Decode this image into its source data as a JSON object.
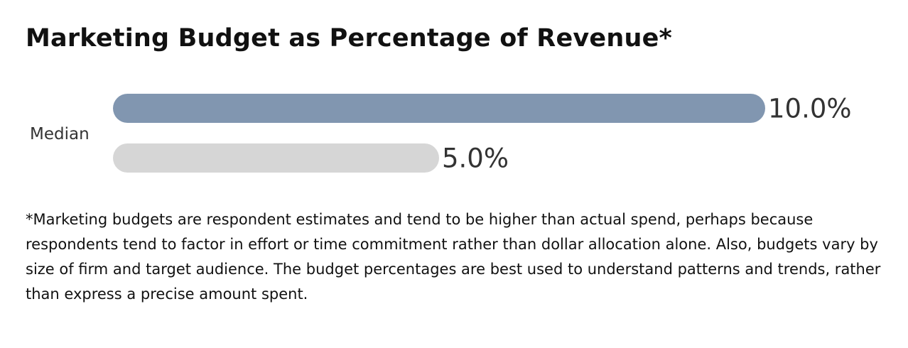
{
  "chart_data": {
    "type": "bar",
    "orientation": "horizontal",
    "title": "Marketing Budget as Percentage of Revenue*",
    "categories": [
      "Median"
    ],
    "series": [
      {
        "values": [
          10.0
        ],
        "labels": [
          "10.0%"
        ],
        "color": "#8196B0"
      },
      {
        "values": [
          5.0
        ],
        "labels": [
          "5.0%"
        ],
        "color": "#D6D6D6"
      }
    ],
    "xlim": [
      0,
      10.0
    ],
    "legend": "none",
    "grid": false
  },
  "footnote": "*Marketing budgets are respondent estimates and tend to be higher than actual spend, perhaps because respondents tend to factor in effort or time commitment rather than dollar allocation alone. Also, budgets vary by size of firm and target audience. The budget percentages are best used to understand patterns and trends, rather than express a precise amount spent."
}
